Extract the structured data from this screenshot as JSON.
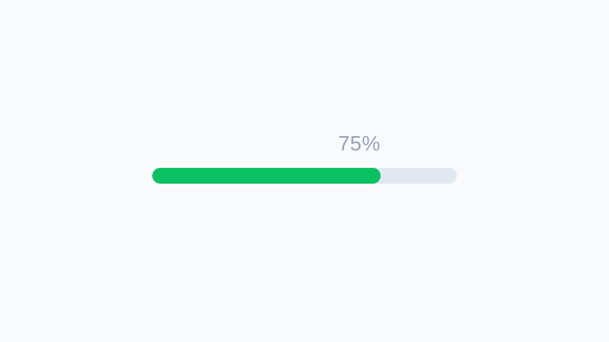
{
  "progress": {
    "percent": 75,
    "label": "75%",
    "colors": {
      "background": "#f8fafc",
      "track": "#e2e8f0",
      "fill": "#0ac264",
      "label_text": "#98a2b8"
    }
  }
}
